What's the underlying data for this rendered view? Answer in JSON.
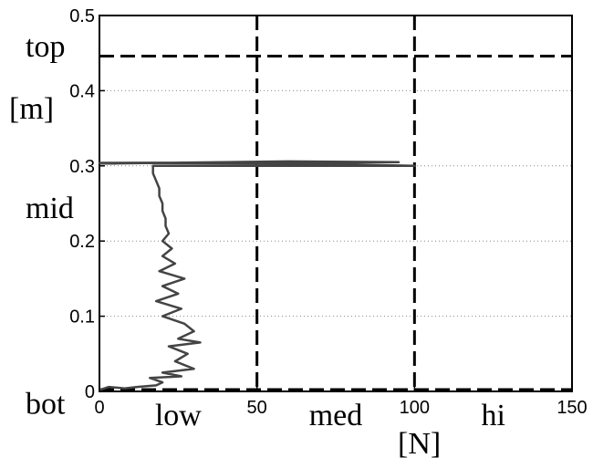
{
  "chart_data": {
    "type": "line",
    "x_ticks": [
      "0",
      "50",
      "100",
      "150"
    ],
    "y_ticks": [
      "0",
      "0.1",
      "0.2",
      "0.3",
      "0.4",
      "0.5"
    ],
    "xlim": [
      0,
      150
    ],
    "ylim": [
      0,
      0.5
    ],
    "xlabel": "[N]",
    "ylabel": "[m]",
    "x_zone_labels": [
      {
        "text": "low",
        "x": 25
      },
      {
        "text": "med",
        "x": 75
      },
      {
        "text": "hi",
        "x": 125
      }
    ],
    "y_zone_labels": [
      {
        "text": "top",
        "y": 0.46
      },
      {
        "text": "mid",
        "y": 0.245
      },
      {
        "text": "bot",
        "y": -0.015
      }
    ],
    "vertical_dashed_lines": [
      50,
      100
    ],
    "horizontal_dashed_lines": [
      0.446,
      0.0
    ],
    "grid": "horizontal dotted",
    "series": [
      {
        "color": "#444444",
        "x": [
          0,
          3,
          8,
          12,
          18,
          20,
          16,
          26,
          20,
          30,
          24,
          28,
          22,
          32,
          25,
          30,
          27,
          20,
          26,
          18,
          25,
          20,
          27,
          19,
          24,
          20,
          23,
          20,
          22,
          21,
          21,
          20,
          20,
          19,
          19,
          18,
          17,
          17,
          100,
          80,
          55,
          0,
          95,
          60,
          20,
          0
        ],
        "y": [
          0.002,
          0.006,
          0.004,
          0.006,
          0.008,
          0.012,
          0.018,
          0.02,
          0.025,
          0.03,
          0.04,
          0.05,
          0.06,
          0.065,
          0.07,
          0.08,
          0.09,
          0.1,
          0.11,
          0.12,
          0.13,
          0.14,
          0.15,
          0.16,
          0.17,
          0.18,
          0.19,
          0.2,
          0.21,
          0.22,
          0.23,
          0.24,
          0.25,
          0.26,
          0.27,
          0.28,
          0.29,
          0.3,
          0.3,
          0.302,
          0.303,
          0.304,
          0.305,
          0.306,
          0.304,
          0.303
        ]
      }
    ]
  }
}
